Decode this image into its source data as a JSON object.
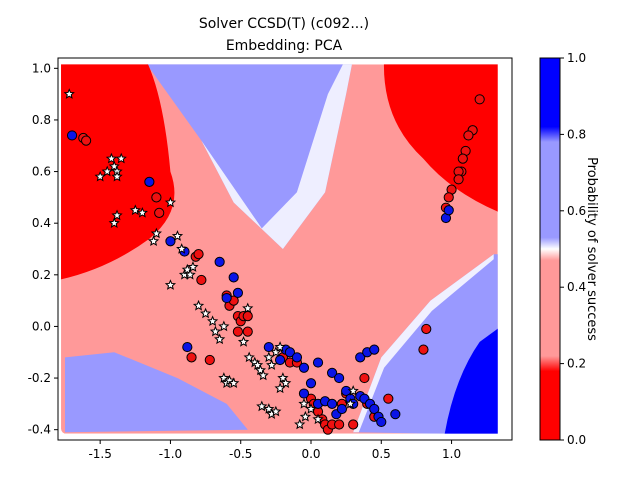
{
  "chart_data": {
    "type": "scatter",
    "title": "Solver CCSD(T) (c092...)",
    "subtitle": "Embedding: PCA",
    "xlabel": "",
    "ylabel": "",
    "xlim": [
      -1.8,
      1.43
    ],
    "ylim": [
      -0.44,
      1.04
    ],
    "xticks": [
      "-1.5",
      "-1.0",
      "-0.5",
      "0.0",
      "0.5",
      "1.0"
    ],
    "yticks": [
      "-0.4",
      "-0.2",
      "0.0",
      "0.2",
      "0.4",
      "0.6",
      "0.8",
      "1.0"
    ],
    "grid": false,
    "colorbar": {
      "label": "Probability of solver success",
      "range": [
        0,
        1
      ],
      "ticks": [
        "0.0",
        "0.2",
        "0.4",
        "0.6",
        "0.8",
        "1.0"
      ],
      "colors": [
        "#ff0000",
        "#ff9999",
        "#9999ff",
        "#0000ff"
      ]
    },
    "background": {
      "type": "decision-surface",
      "region_x": [
        -1.75,
        1.3
      ],
      "region_y": [
        -0.4,
        1.0
      ]
    },
    "series": [
      {
        "marker": "circle-red",
        "color": "#ee1111",
        "points": [
          [
            1.2,
            0.88
          ],
          [
            1.15,
            0.76
          ],
          [
            1.12,
            0.74
          ],
          [
            1.1,
            0.68
          ],
          [
            1.08,
            0.65
          ],
          [
            1.07,
            0.6
          ],
          [
            1.05,
            0.6
          ],
          [
            1.05,
            0.57
          ],
          [
            1.0,
            0.53
          ],
          [
            0.98,
            0.5
          ],
          [
            0.96,
            0.46
          ],
          [
            -1.62,
            0.73
          ],
          [
            -1.6,
            0.72
          ],
          [
            -1.1,
            0.5
          ],
          [
            -1.08,
            0.44
          ],
          [
            -0.82,
            0.27
          ],
          [
            -0.8,
            0.28
          ],
          [
            -0.78,
            0.18
          ],
          [
            -0.85,
            -0.12
          ],
          [
            -0.72,
            -0.13
          ],
          [
            -0.6,
            0.12
          ],
          [
            -0.58,
            0.08
          ],
          [
            -0.55,
            0.1
          ],
          [
            -0.52,
            0.04
          ],
          [
            -0.5,
            0.02
          ],
          [
            -0.48,
            0.04
          ],
          [
            -0.45,
            -0.02
          ],
          [
            -0.52,
            -0.02
          ],
          [
            -0.45,
            0.04
          ],
          [
            -0.2,
            -0.12
          ],
          [
            -0.15,
            -0.14
          ],
          [
            -0.1,
            -0.14
          ],
          [
            0.0,
            -0.28
          ],
          [
            0.02,
            -0.3
          ],
          [
            0.05,
            -0.33
          ],
          [
            0.08,
            -0.36
          ],
          [
            0.1,
            -0.38
          ],
          [
            0.12,
            -0.4
          ],
          [
            0.15,
            -0.38
          ],
          [
            0.2,
            -0.38
          ],
          [
            0.22,
            -0.3
          ],
          [
            0.25,
            -0.26
          ],
          [
            0.3,
            -0.38
          ],
          [
            0.38,
            -0.2
          ],
          [
            0.4,
            -0.3
          ],
          [
            0.45,
            -0.35
          ],
          [
            0.55,
            -0.28
          ],
          [
            0.82,
            -0.01
          ],
          [
            0.8,
            -0.09
          ]
        ]
      },
      {
        "marker": "circle-blue",
        "color": "#0a14e6",
        "points": [
          [
            -1.7,
            0.74
          ],
          [
            -1.15,
            0.56
          ],
          [
            -1.0,
            0.33
          ],
          [
            -0.9,
            0.29
          ],
          [
            -0.88,
            -0.08
          ],
          [
            -0.65,
            0.25
          ],
          [
            -0.55,
            0.19
          ],
          [
            -0.52,
            0.13
          ],
          [
            -0.6,
            0.11
          ],
          [
            -0.18,
            -0.09
          ],
          [
            -0.15,
            -0.1
          ],
          [
            -0.22,
            -0.13
          ],
          [
            -0.1,
            -0.12
          ],
          [
            -0.05,
            -0.16
          ],
          [
            0.05,
            -0.14
          ],
          [
            0.15,
            -0.18
          ],
          [
            0.2,
            -0.2
          ],
          [
            0.25,
            -0.25
          ],
          [
            0.28,
            -0.28
          ],
          [
            0.3,
            -0.3
          ],
          [
            0.35,
            -0.27
          ],
          [
            0.38,
            -0.28
          ],
          [
            0.42,
            -0.3
          ],
          [
            0.45,
            -0.32
          ],
          [
            0.48,
            -0.35
          ],
          [
            0.5,
            -0.37
          ],
          [
            0.6,
            -0.34
          ],
          [
            0.35,
            -0.12
          ],
          [
            0.4,
            -0.1
          ],
          [
            0.45,
            -0.09
          ],
          [
            0.05,
            -0.3
          ],
          [
            0.1,
            -0.29
          ],
          [
            0.15,
            -0.3
          ],
          [
            0.18,
            -0.34
          ],
          [
            0.22,
            -0.32
          ],
          [
            -0.05,
            -0.26
          ],
          [
            0.0,
            -0.22
          ],
          [
            -0.3,
            -0.08
          ],
          [
            0.96,
            0.42
          ],
          [
            0.98,
            0.45
          ]
        ]
      },
      {
        "marker": "star-white",
        "color": "#ffffff",
        "points": [
          [
            -1.72,
            0.9
          ],
          [
            -1.5,
            0.58
          ],
          [
            -1.45,
            0.6
          ],
          [
            -1.42,
            0.65
          ],
          [
            -1.4,
            0.62
          ],
          [
            -1.38,
            0.6
          ],
          [
            -1.35,
            0.65
          ],
          [
            -1.38,
            0.58
          ],
          [
            -1.4,
            0.4
          ],
          [
            -1.38,
            0.43
          ],
          [
            -1.25,
            0.45
          ],
          [
            -1.2,
            0.44
          ],
          [
            -1.1,
            0.36
          ],
          [
            -1.12,
            0.33
          ],
          [
            -1.0,
            0.48
          ],
          [
            -0.95,
            0.35
          ],
          [
            -0.92,
            0.3
          ],
          [
            -1.0,
            0.16
          ],
          [
            -0.9,
            0.2
          ],
          [
            -0.88,
            0.22
          ],
          [
            -0.86,
            0.2
          ],
          [
            -0.84,
            0.23
          ],
          [
            -0.8,
            0.08
          ],
          [
            -0.75,
            0.05
          ],
          [
            -0.7,
            0.02
          ],
          [
            -0.68,
            -0.02
          ],
          [
            -0.65,
            -0.05
          ],
          [
            -0.62,
            0.0
          ],
          [
            -0.45,
            0.07
          ],
          [
            -0.48,
            -0.06
          ],
          [
            -0.44,
            -0.12
          ],
          [
            -0.4,
            -0.14
          ],
          [
            -0.38,
            -0.15
          ],
          [
            -0.36,
            -0.17
          ],
          [
            -0.34,
            -0.19
          ],
          [
            -0.3,
            -0.12
          ],
          [
            -0.28,
            -0.15
          ],
          [
            -0.25,
            -0.1
          ],
          [
            -0.22,
            -0.08
          ],
          [
            -0.2,
            -0.2
          ],
          [
            -0.18,
            -0.22
          ],
          [
            -0.22,
            -0.24
          ],
          [
            -0.62,
            -0.2
          ],
          [
            -0.6,
            -0.22
          ],
          [
            -0.58,
            -0.21
          ],
          [
            -0.55,
            -0.22
          ],
          [
            -0.35,
            -0.31
          ],
          [
            -0.3,
            -0.32
          ],
          [
            -0.28,
            -0.34
          ],
          [
            -0.25,
            -0.33
          ],
          [
            -0.05,
            -0.3
          ],
          [
            0.05,
            -0.36
          ],
          [
            -0.08,
            -0.38
          ],
          [
            -0.04,
            -0.35
          ],
          [
            0.0,
            -0.32
          ],
          [
            0.3,
            -0.25
          ],
          [
            0.28,
            -0.3
          ]
        ]
      }
    ]
  }
}
